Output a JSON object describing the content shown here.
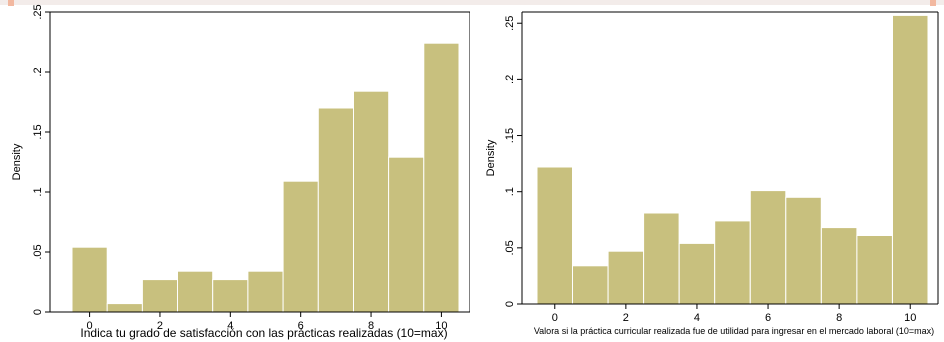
{
  "chart_data": [
    {
      "type": "bar",
      "xlabel": "Indica tu grado de satisfacción con las prácticas realizadas (10=max)",
      "ylabel": "Density",
      "ylim": [
        0,
        0.25
      ],
      "xlim": [
        -0.5,
        10.5
      ],
      "yticks": [
        0,
        0.05,
        0.1,
        0.15,
        0.2,
        0.25
      ],
      "ytick_labels": [
        "0",
        ".05",
        ".1",
        ".15",
        ".2",
        ".25"
      ],
      "xticks": [
        0,
        2,
        4,
        6,
        8,
        10
      ],
      "xtick_labels": [
        "0",
        "2",
        "4",
        "6",
        "8",
        "10"
      ],
      "bin_edges": [
        -0.5,
        0.5,
        1.5,
        2.5,
        3.5,
        4.5,
        5.5,
        6.5,
        7.5,
        8.5,
        9.5,
        10.5
      ],
      "values": [
        0.054,
        0.007,
        0.027,
        0.034,
        0.027,
        0.034,
        0.109,
        0.17,
        0.184,
        0.129,
        0.224
      ],
      "bar_color": "#c8c07e",
      "bar_edge": "#ffffff",
      "grid": false,
      "legend": "none"
    },
    {
      "type": "bar",
      "xlabel": "Valora si la práctica curricular realizada fue de utilidad para ingresar en el mercado laboral (10=max)",
      "ylabel": "Density",
      "ylim": [
        0,
        0.26
      ],
      "xlim": [
        -0.5,
        10.5
      ],
      "yticks": [
        0,
        0.05,
        0.1,
        0.15,
        0.2,
        0.25
      ],
      "ytick_labels": [
        "0",
        ".05",
        ".1",
        ".15",
        ".2",
        ".25"
      ],
      "xticks": [
        0,
        2,
        4,
        6,
        8,
        10
      ],
      "xtick_labels": [
        "0",
        "2",
        "4",
        "6",
        "8",
        "10"
      ],
      "bin_edges": [
        -0.5,
        0.5,
        1.5,
        2.5,
        3.5,
        4.5,
        5.5,
        6.5,
        7.5,
        8.5,
        9.5,
        10.5
      ],
      "values": [
        0.122,
        0.034,
        0.047,
        0.081,
        0.054,
        0.074,
        0.101,
        0.095,
        0.068,
        0.061,
        0.257
      ],
      "bar_color": "#c8c07e",
      "bar_edge": "#ffffff",
      "grid": false,
      "legend": "none"
    }
  ]
}
